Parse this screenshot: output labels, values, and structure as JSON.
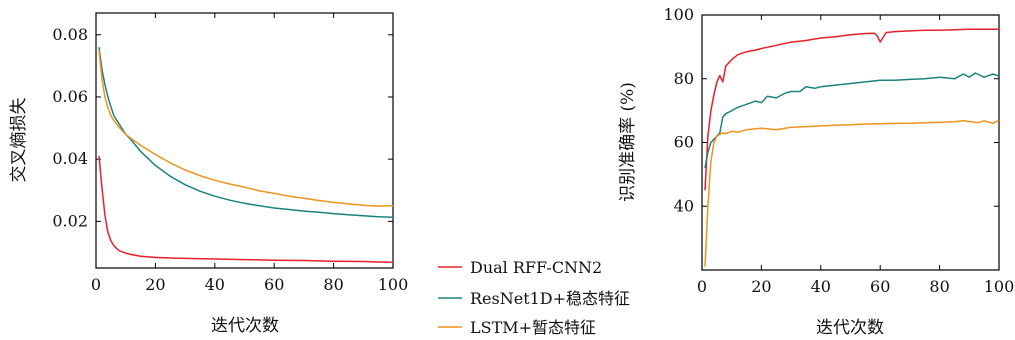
{
  "chart_data": [
    {
      "type": "line",
      "title": "",
      "xlabel": "迭代次数",
      "ylabel": "交叉熵损失",
      "xlim": [
        0,
        100
      ],
      "ylim": [
        0.005,
        0.087
      ],
      "xticks": [
        "0",
        "20",
        "40",
        "60",
        "80",
        "100"
      ],
      "xtick_values": [
        0,
        20,
        40,
        60,
        80,
        100
      ],
      "yticks": [
        "0.02",
        "0.04",
        "0.06",
        "0.08"
      ],
      "ytick_values": [
        0.02,
        0.04,
        0.06,
        0.08
      ],
      "grid": false,
      "series": [
        {
          "name": "Dual RFF-CNN2",
          "color": "#e8202a",
          "x": [
            1,
            2,
            3,
            4,
            5,
            6,
            7,
            8,
            10,
            12,
            15,
            20,
            25,
            30,
            40,
            50,
            60,
            70,
            80,
            90,
            100
          ],
          "y": [
            0.041,
            0.031,
            0.022,
            0.0165,
            0.0138,
            0.0122,
            0.0112,
            0.0105,
            0.0098,
            0.0093,
            0.0088,
            0.0084,
            0.0082,
            0.0081,
            0.0079,
            0.0077,
            0.0075,
            0.0074,
            0.0072,
            0.0071,
            0.0068
          ]
        },
        {
          "name": "ResNet1D+稳态特征",
          "color": "#1a8281",
          "x": [
            1,
            2,
            3,
            4,
            5,
            6,
            8,
            10,
            12,
            15,
            20,
            25,
            30,
            35,
            40,
            45,
            50,
            55,
            60,
            65,
            70,
            75,
            80,
            85,
            90,
            95,
            100
          ],
          "y": [
            0.076,
            0.069,
            0.064,
            0.06,
            0.057,
            0.054,
            0.051,
            0.048,
            0.046,
            0.0425,
            0.038,
            0.0345,
            0.0318,
            0.0297,
            0.0281,
            0.0268,
            0.0258,
            0.025,
            0.0243,
            0.0238,
            0.0233,
            0.0229,
            0.0225,
            0.0221,
            0.0218,
            0.0215,
            0.0213
          ]
        },
        {
          "name": "LSTM+暂态特征",
          "color": "#f0921e",
          "x": [
            1,
            2,
            3,
            4,
            5,
            6,
            8,
            10,
            12,
            15,
            20,
            25,
            30,
            35,
            40,
            45,
            50,
            55,
            60,
            65,
            70,
            75,
            80,
            85,
            90,
            95,
            100
          ],
          "y": [
            0.075,
            0.066,
            0.06,
            0.0565,
            0.054,
            0.0525,
            0.05,
            0.048,
            0.0465,
            0.0445,
            0.0415,
            0.0388,
            0.0365,
            0.0347,
            0.0332,
            0.032,
            0.031,
            0.0298,
            0.029,
            0.0281,
            0.0274,
            0.0267,
            0.0261,
            0.0256,
            0.0252,
            0.0249,
            0.025
          ]
        }
      ]
    },
    {
      "type": "line",
      "title": "",
      "xlabel": "迭代次数",
      "ylabel": "识别准确率 (%)",
      "xlim": [
        0,
        100
      ],
      "ylim": [
        20,
        100
      ],
      "xticks": [
        "0",
        "20",
        "40",
        "60",
        "80",
        "100"
      ],
      "xtick_values": [
        0,
        20,
        40,
        60,
        80,
        100
      ],
      "yticks": [
        "40",
        "60",
        "80",
        "100"
      ],
      "ytick_values": [
        40,
        60,
        80,
        100
      ],
      "grid": false,
      "series": [
        {
          "name": "Dual RFF-CNN2",
          "color": "#e8202a",
          "x": [
            1,
            2,
            3,
            4,
            5,
            6,
            7,
            8,
            10,
            12,
            15,
            18,
            20,
            25,
            30,
            35,
            40,
            45,
            50,
            55,
            58,
            59,
            60,
            62,
            65,
            70,
            75,
            80,
            85,
            90,
            95,
            100
          ],
          "y": [
            45,
            62,
            70,
            75,
            79,
            81,
            79,
            84,
            86,
            87.5,
            88.5,
            89,
            89.5,
            90.5,
            91.5,
            92,
            92.8,
            93.2,
            93.8,
            94.2,
            94.3,
            93.5,
            91.5,
            94.5,
            94.8,
            95,
            95.2,
            95.2,
            95.4,
            95.5,
            95.5,
            95.5
          ]
        },
        {
          "name": "ResNet1D+稳态特征",
          "color": "#1a8281",
          "x": [
            1,
            2,
            3,
            4,
            5,
            6,
            7,
            8,
            10,
            12,
            15,
            18,
            20,
            22,
            25,
            28,
            30,
            33,
            35,
            38,
            40,
            45,
            50,
            55,
            60,
            65,
            70,
            75,
            80,
            85,
            88,
            90,
            92,
            95,
            98,
            100
          ],
          "y": [
            52,
            57,
            60,
            61,
            62,
            63,
            68,
            69,
            70,
            71,
            72,
            73,
            72.5,
            74.5,
            74,
            75.5,
            76,
            76,
            77.5,
            77,
            77.5,
            78,
            78.5,
            79,
            79.5,
            79.5,
            79.8,
            80,
            80.5,
            80,
            81.5,
            80.5,
            81.8,
            80.5,
            81.5,
            80.8
          ]
        },
        {
          "name": "LSTM+暂态特征",
          "color": "#f0921e",
          "x": [
            1,
            2,
            3,
            4,
            5,
            6,
            7,
            8,
            10,
            12,
            15,
            18,
            20,
            25,
            30,
            35,
            40,
            45,
            50,
            55,
            60,
            65,
            70,
            75,
            80,
            85,
            88,
            90,
            93,
            95,
            98,
            100
          ],
          "y": [
            21,
            40,
            54,
            60,
            62,
            62.5,
            63,
            62.8,
            63.5,
            63.2,
            64,
            64.3,
            64.5,
            64,
            64.8,
            65,
            65.2,
            65.4,
            65.6,
            65.8,
            65.9,
            66,
            66,
            66.2,
            66.3,
            66.5,
            66.8,
            66.6,
            66.2,
            66.8,
            66,
            67
          ]
        }
      ]
    }
  ],
  "legend": [
    {
      "label": "Dual RFF-CNN2",
      "color": "#e8202a"
    },
    {
      "label": "ResNet1D+稳态特征",
      "color": "#1a8281"
    },
    {
      "label": "LSTM+暂态特征",
      "color": "#f0921e"
    }
  ]
}
